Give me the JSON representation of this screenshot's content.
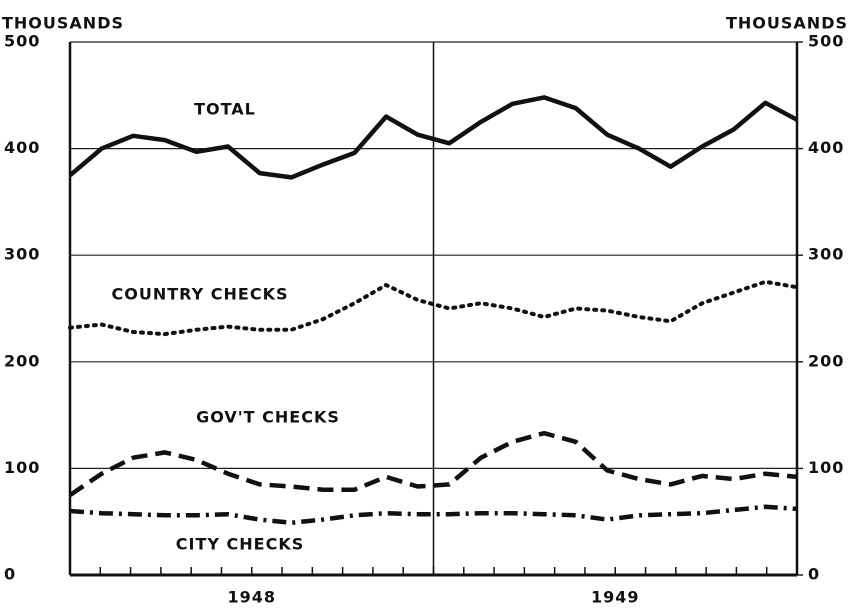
{
  "chart_data": {
    "type": "line",
    "y_label": "THOUSANDS",
    "y2_label": "THOUSANDS",
    "categories": [
      null,
      null,
      null,
      null,
      null,
      null,
      null,
      null,
      null,
      null,
      null,
      null,
      null,
      null,
      null,
      null,
      null,
      null,
      null,
      null,
      null,
      null,
      null,
      null
    ],
    "year_labels": [
      "1948",
      "1949"
    ],
    "ylim": [
      0,
      500
    ],
    "yticks": [
      0,
      100,
      200,
      300,
      400,
      500
    ],
    "y2lim": [
      0,
      500
    ],
    "y2ticks": [
      0,
      100,
      200,
      300,
      400,
      500
    ],
    "grid": true,
    "series": [
      {
        "name": "TOTAL",
        "color": "#111111",
        "style": "solid",
        "values": [
          375,
          400,
          412,
          408,
          397,
          402,
          377,
          373,
          385,
          396,
          430,
          413,
          405,
          425,
          442,
          448,
          438,
          413,
          400,
          383,
          402,
          418,
          443,
          427
        ]
      },
      {
        "name": "COUNTRY CHECKS",
        "color": "#111111",
        "style": "dotted",
        "values": [
          232,
          235,
          228,
          226,
          230,
          233,
          230,
          230,
          240,
          255,
          272,
          258,
          250,
          255,
          250,
          242,
          250,
          248,
          242,
          238,
          255,
          265,
          275,
          270
        ]
      },
      {
        "name": "GOV'T CHECKS",
        "color": "#111111",
        "style": "dashed",
        "values": [
          75,
          95,
          110,
          115,
          108,
          95,
          85,
          83,
          80,
          80,
          92,
          83,
          85,
          110,
          125,
          133,
          125,
          98,
          90,
          85,
          93,
          90,
          95,
          92
        ]
      },
      {
        "name": "CITY CHECKS",
        "color": "#111111",
        "style": "dashdot",
        "values": [
          60,
          58,
          57,
          56,
          56,
          57,
          52,
          49,
          52,
          56,
          58,
          57,
          57,
          58,
          58,
          57,
          56,
          52,
          56,
          57,
          58,
          61,
          64,
          62
        ]
      }
    ]
  }
}
